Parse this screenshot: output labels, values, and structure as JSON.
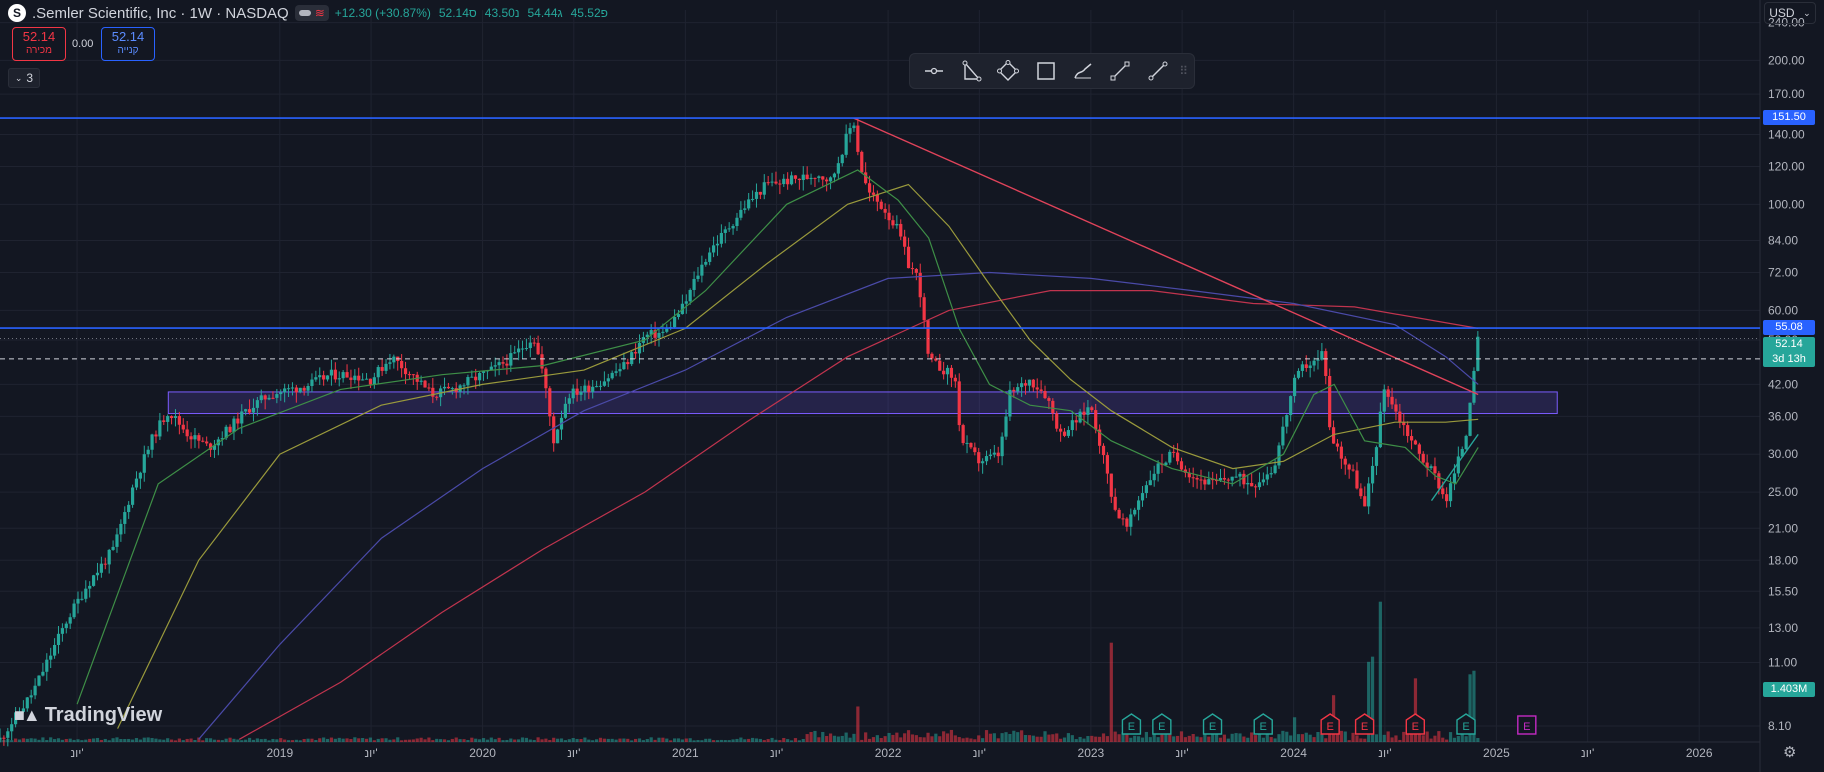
{
  "header": {
    "logo_letter": "S",
    "title": ".Semler Scientific, Inc · 1W · NASDAQ",
    "change": "+12.30 (+30.87%)",
    "ohlc": [
      "52.14ס",
      "43.50נ",
      "54.44ג",
      "45.52פ"
    ],
    "wave_icon": "≋"
  },
  "trade": {
    "sell_value": "52.14",
    "sell_label": "מכירה",
    "spread": "0.00",
    "buy_value": "52.14",
    "buy_label": "קנייה"
  },
  "indicators_counter": "3",
  "toolbar": {
    "tools": [
      "horizontal-line-icon",
      "triangle-pattern-icon",
      "rotated-rectangle-icon",
      "rectangle-icon",
      "brush-icon",
      "path-icon",
      "trendline-icon"
    ],
    "grip": "⠿"
  },
  "currency": "USD",
  "price_tags": {
    "resistance_high": "151.50",
    "resistance_low": "55.08",
    "last_price": "52.14",
    "countdown": "3d 13h",
    "volume": "1.403M"
  },
  "brand": "TradingView",
  "colors": {
    "background": "#131722",
    "up": "#26a69a",
    "down": "#f23645",
    "level_line": "#2962ff",
    "ma_fast": "#3e8f47",
    "ma_mid": "#9a9a3c",
    "ma_slow": "#4a4aa8",
    "ma_long": "#c0344e",
    "trendline": "#e0435a",
    "zone": "#7b5cff"
  },
  "chart_data": {
    "type": "candlestick",
    "scale": "log",
    "ylim": [
      7.5,
      255
    ],
    "y_ticks": [
      "240.00",
      "200.00",
      "170.00",
      "140.00",
      "120.00",
      "100.00",
      "84.00",
      "72.00",
      "60.00",
      "52.00",
      "42.00",
      "36.00",
      "30.00",
      "25.00",
      "21.00",
      "18.00",
      "15.50",
      "13.00",
      "11.00",
      "8.10"
    ],
    "y_tick_values": [
      240,
      200,
      170,
      140,
      120,
      100,
      84,
      72,
      60,
      52,
      42,
      36,
      30,
      25,
      21,
      18,
      15.5,
      13,
      11,
      8.1
    ],
    "x_ticks": [
      {
        "label": "יונ'",
        "t": 2018.0
      },
      {
        "label": "2019",
        "t": 2019.0
      },
      {
        "label": "יונ'",
        "t": 2019.45
      },
      {
        "label": "2020",
        "t": 2020.0
      },
      {
        "label": "יונ'",
        "t": 2020.45
      },
      {
        "label": "2021",
        "t": 2021.0
      },
      {
        "label": "יונ'",
        "t": 2021.45
      },
      {
        "label": "2022",
        "t": 2022.0
      },
      {
        "label": "יונ'",
        "t": 2022.45
      },
      {
        "label": "2023",
        "t": 2023.0
      },
      {
        "label": "יונ'",
        "t": 2023.45
      },
      {
        "label": "2024",
        "t": 2024.0
      },
      {
        "label": "יונ'",
        "t": 2024.45
      },
      {
        "label": "2025",
        "t": 2025.0
      },
      {
        "label": "יונ'",
        "t": 2025.45
      },
      {
        "label": "2026",
        "t": 2026.0
      }
    ],
    "xlim": [
      2017.62,
      2026.3
    ],
    "price_path": [
      [
        2017.62,
        7.6
      ],
      [
        2017.78,
        9.5
      ],
      [
        2017.95,
        13.5
      ],
      [
        2018.05,
        16
      ],
      [
        2018.18,
        19
      ],
      [
        2018.28,
        26
      ],
      [
        2018.38,
        33
      ],
      [
        2018.45,
        37
      ],
      [
        2018.55,
        33
      ],
      [
        2018.65,
        31
      ],
      [
        2018.75,
        34
      ],
      [
        2018.85,
        37.5
      ],
      [
        2018.95,
        40
      ],
      [
        2019.05,
        41
      ],
      [
        2019.15,
        42
      ],
      [
        2019.25,
        44
      ],
      [
        2019.35,
        44
      ],
      [
        2019.45,
        43
      ],
      [
        2019.55,
        48
      ],
      [
        2019.65,
        44
      ],
      [
        2019.75,
        40
      ],
      [
        2019.85,
        41
      ],
      [
        2019.95,
        43
      ],
      [
        2020.05,
        45
      ],
      [
        2020.15,
        48
      ],
      [
        2020.25,
        53
      ],
      [
        2020.3,
        44
      ],
      [
        2020.35,
        32
      ],
      [
        2020.42,
        40
      ],
      [
        2020.5,
        41
      ],
      [
        2020.6,
        43
      ],
      [
        2020.7,
        46
      ],
      [
        2020.8,
        53
      ],
      [
        2020.9,
        54
      ],
      [
        2021.0,
        62
      ],
      [
        2021.05,
        70
      ],
      [
        2021.12,
        80
      ],
      [
        2021.2,
        88
      ],
      [
        2021.3,
        100
      ],
      [
        2021.4,
        110
      ],
      [
        2021.5,
        112
      ],
      [
        2021.6,
        114
      ],
      [
        2021.65,
        116
      ],
      [
        2021.72,
        112
      ],
      [
        2021.8,
        140
      ],
      [
        2021.83,
        150
      ],
      [
        2021.86,
        122
      ],
      [
        2021.9,
        106
      ],
      [
        2021.98,
        98
      ],
      [
        2022.05,
        88
      ],
      [
        2022.1,
        75
      ],
      [
        2022.15,
        70
      ],
      [
        2022.2,
        47
      ],
      [
        2022.28,
        45
      ],
      [
        2022.33,
        43
      ],
      [
        2022.36,
        32
      ],
      [
        2022.45,
        29
      ],
      [
        2022.55,
        30
      ],
      [
        2022.6,
        40
      ],
      [
        2022.7,
        43
      ],
      [
        2022.78,
        40
      ],
      [
        2022.85,
        33
      ],
      [
        2022.92,
        35
      ],
      [
        2023.0,
        38
      ],
      [
        2023.05,
        31
      ],
      [
        2023.12,
        23
      ],
      [
        2023.18,
        21
      ],
      [
        2023.25,
        25
      ],
      [
        2023.32,
        28
      ],
      [
        2023.4,
        30
      ],
      [
        2023.5,
        27
      ],
      [
        2023.6,
        26
      ],
      [
        2023.7,
        27
      ],
      [
        2023.8,
        26
      ],
      [
        2023.9,
        28
      ],
      [
        2024.0,
        42
      ],
      [
        2024.05,
        46
      ],
      [
        2024.12,
        47
      ],
      [
        2024.15,
        50
      ],
      [
        2024.18,
        33
      ],
      [
        2024.25,
        29
      ],
      [
        2024.3,
        27
      ],
      [
        2024.35,
        23
      ],
      [
        2024.4,
        30
      ],
      [
        2024.45,
        42
      ],
      [
        2024.5,
        37
      ],
      [
        2024.55,
        34
      ],
      [
        2024.62,
        30
      ],
      [
        2024.7,
        27
      ],
      [
        2024.75,
        24
      ],
      [
        2024.8,
        28
      ],
      [
        2024.85,
        33
      ],
      [
        2024.88,
        43
      ],
      [
        2024.91,
        52.14
      ]
    ],
    "ma_fast": [
      [
        2018.0,
        9
      ],
      [
        2018.4,
        26
      ],
      [
        2018.8,
        34
      ],
      [
        2019.3,
        41
      ],
      [
        2019.8,
        44
      ],
      [
        2020.3,
        46
      ],
      [
        2020.8,
        52
      ],
      [
        2021.1,
        66
      ],
      [
        2021.5,
        100
      ],
      [
        2021.85,
        118
      ],
      [
        2022.05,
        102
      ],
      [
        2022.2,
        85
      ],
      [
        2022.35,
        55
      ],
      [
        2022.5,
        42
      ],
      [
        2022.7,
        38
      ],
      [
        2022.9,
        37
      ],
      [
        2023.1,
        32
      ],
      [
        2023.4,
        28
      ],
      [
        2023.7,
        26
      ],
      [
        2023.95,
        30
      ],
      [
        2024.1,
        40
      ],
      [
        2024.2,
        42
      ],
      [
        2024.35,
        32
      ],
      [
        2024.55,
        31
      ],
      [
        2024.7,
        27
      ],
      [
        2024.8,
        26
      ],
      [
        2024.91,
        31
      ]
    ],
    "ma_mid": [
      [
        2018.2,
        8
      ],
      [
        2018.6,
        18
      ],
      [
        2019.0,
        30
      ],
      [
        2019.5,
        38
      ],
      [
        2020.0,
        42
      ],
      [
        2020.5,
        45
      ],
      [
        2021.0,
        55
      ],
      [
        2021.4,
        75
      ],
      [
        2021.8,
        100
      ],
      [
        2022.1,
        110
      ],
      [
        2022.3,
        90
      ],
      [
        2022.5,
        68
      ],
      [
        2022.7,
        52
      ],
      [
        2022.9,
        43
      ],
      [
        2023.1,
        37
      ],
      [
        2023.4,
        31
      ],
      [
        2023.7,
        28
      ],
      [
        2023.95,
        29
      ],
      [
        2024.2,
        33
      ],
      [
        2024.5,
        35
      ],
      [
        2024.75,
        35
      ],
      [
        2024.91,
        35.5
      ]
    ],
    "ma_slow": [
      [
        2018.6,
        7.6
      ],
      [
        2019.0,
        12
      ],
      [
        2019.5,
        20
      ],
      [
        2020.0,
        28
      ],
      [
        2020.5,
        37
      ],
      [
        2021.0,
        45
      ],
      [
        2021.5,
        58
      ],
      [
        2022.0,
        70
      ],
      [
        2022.5,
        72
      ],
      [
        2023.0,
        70
      ],
      [
        2023.5,
        66
      ],
      [
        2024.0,
        62
      ],
      [
        2024.5,
        56
      ],
      [
        2024.75,
        48
      ],
      [
        2024.91,
        42
      ]
    ],
    "ma_long": [
      [
        2018.8,
        7.6
      ],
      [
        2019.3,
        10
      ],
      [
        2019.8,
        14
      ],
      [
        2020.3,
        19
      ],
      [
        2020.8,
        25
      ],
      [
        2021.3,
        35
      ],
      [
        2021.8,
        48
      ],
      [
        2022.3,
        60
      ],
      [
        2022.8,
        66
      ],
      [
        2023.3,
        66
      ],
      [
        2023.8,
        62
      ],
      [
        2024.3,
        61
      ],
      [
        2024.91,
        55
      ]
    ],
    "trendline": [
      [
        2021.83,
        151.5
      ],
      [
        2024.91,
        40
      ]
    ],
    "support_line": [
      [
        2024.68,
        24
      ],
      [
        2024.91,
        33
      ]
    ],
    "levels": [
      151.5,
      55.08
    ],
    "dashed_level": 47.5,
    "zone": {
      "t0": 2018.45,
      "t1": 2025.3,
      "low": 36.5,
      "high": 40.5
    },
    "volume_peaks": [
      [
        2021.85,
        0.18
      ],
      [
        2023.1,
        0.6
      ],
      [
        2024.0,
        0.12
      ],
      [
        2024.2,
        0.25
      ],
      [
        2024.38,
        0.5
      ],
      [
        2024.42,
        0.85
      ],
      [
        2024.6,
        0.35
      ],
      [
        2024.88,
        0.4
      ]
    ],
    "earnings": [
      {
        "t": 2023.2,
        "kind": "up"
      },
      {
        "t": 2023.35,
        "kind": "up"
      },
      {
        "t": 2023.6,
        "kind": "up"
      },
      {
        "t": 2023.85,
        "kind": "up"
      },
      {
        "t": 2024.18,
        "kind": "down"
      },
      {
        "t": 2024.35,
        "kind": "down"
      },
      {
        "t": 2024.6,
        "kind": "down"
      },
      {
        "t": 2024.85,
        "kind": "up"
      },
      {
        "t": 2025.15,
        "kind": "future"
      }
    ],
    "earnings_label": "E"
  }
}
